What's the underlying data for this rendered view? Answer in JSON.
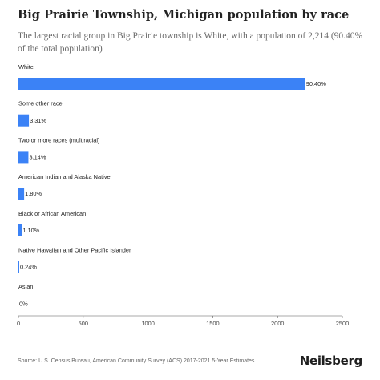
{
  "title": "Big Prairie Township, Michigan population by race",
  "subtitle": "The largest racial group in Big Prairie township is White, with a population of 2,214 (90.40% of the total population)",
  "source": "Source: U.S. Census Bureau, American Community Survey (ACS) 2017-2021 5-Year Estimates",
  "brand": "Neilsberg",
  "colors": {
    "bar": "#3b82f6",
    "axis": "#555555"
  },
  "chart_data": {
    "type": "bar",
    "orientation": "horizontal",
    "title": "Big Prairie Township, Michigan population by race",
    "categories": [
      "White",
      "Some other race",
      "Two or more races (multiracial)",
      "American Indian and Alaska Native",
      "Black or African American",
      "Native Hawaiian and Other Pacific Islander",
      "Asian"
    ],
    "values": [
      2214,
      81,
      77,
      44,
      27,
      6,
      0
    ],
    "labels": [
      "90.40%",
      "3.31%",
      "3.14%",
      "1.80%",
      "1.10%",
      "0.24%",
      "0%"
    ],
    "xlim": [
      0,
      2500
    ],
    "xticks": [
      0,
      500,
      1000,
      1500,
      2000,
      2500
    ],
    "grid": false,
    "legend": "none"
  }
}
